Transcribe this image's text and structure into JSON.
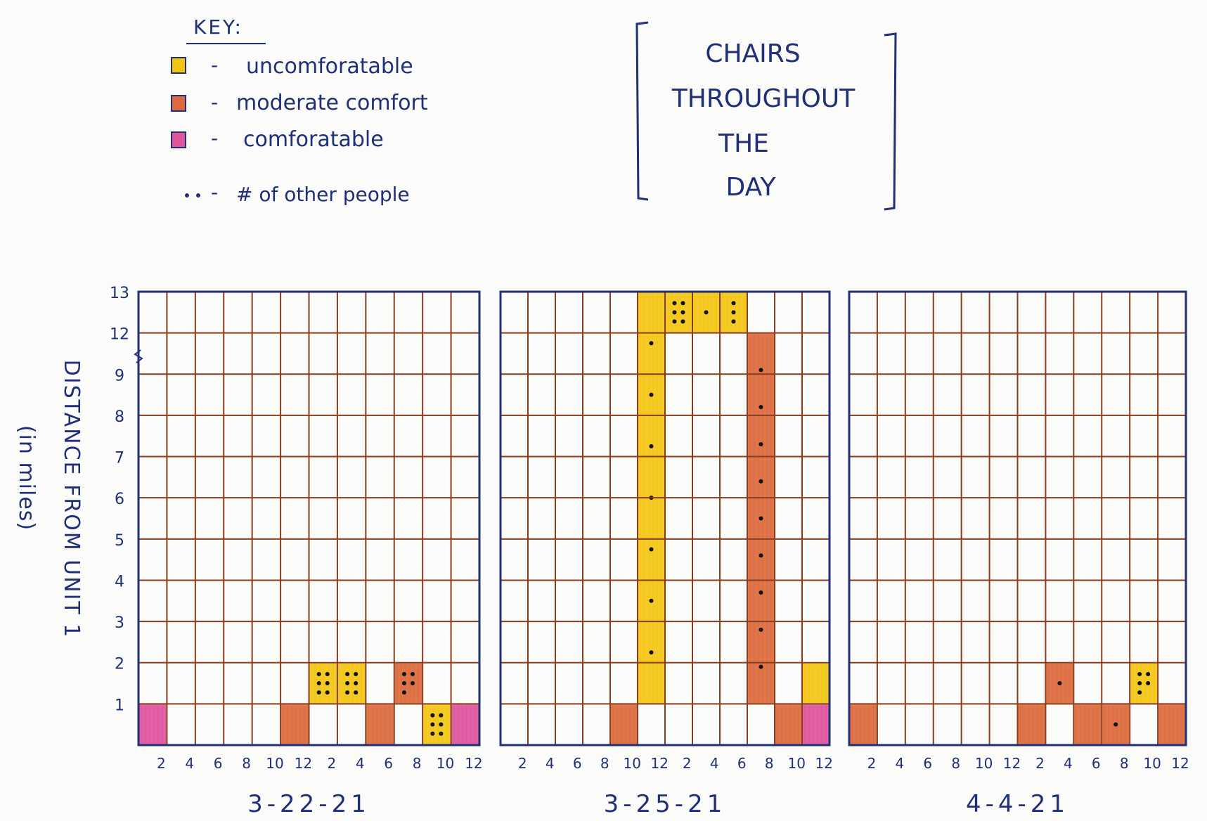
{
  "chart_data": {
    "type": "heatmap",
    "title_lines": [
      "CHAIRS",
      "THROUGHOUT",
      "THE",
      "DAY"
    ],
    "key": {
      "heading": "KEY:",
      "items": [
        {
          "label": "uncomforatable",
          "color": "#f2c514"
        },
        {
          "label": "moderate comfort",
          "color": "#dc6a3c"
        },
        {
          "label": "comforatable",
          "color": "#e0549c"
        }
      ],
      "dots_label": "# of other people"
    },
    "ylabel": "DISTANCE FROM UNIT 1",
    "ylabel_sub": "(in miles)",
    "yticks": [
      "1",
      "2",
      "3",
      "4",
      "5",
      "6",
      "7",
      "8",
      "9",
      "12",
      "13"
    ],
    "x_slots": 12,
    "y_rows": 11,
    "xticks": [
      "2",
      "4",
      "6",
      "8",
      "10",
      "12",
      "2",
      "4",
      "6",
      "8",
      "10",
      "12"
    ],
    "colors": {
      "uncomfortable": "#f2c514",
      "moderate": "#dc6a3c",
      "comfortable": "#e0549c",
      "grid": "#8a3d1c",
      "frame": "#1f2f78"
    },
    "panels": [
      {
        "date": "3-22-21",
        "bars": [
          {
            "slot": 0,
            "bottom": 0,
            "top": 1,
            "comfort": "comfortable",
            "people": 0
          },
          {
            "slot": 5,
            "bottom": 0,
            "top": 1,
            "comfort": "moderate",
            "people": 0
          },
          {
            "slot": 6,
            "bottom": 1,
            "top": 2,
            "comfort": "uncomfortable",
            "people": 6
          },
          {
            "slot": 7,
            "bottom": 1,
            "top": 2,
            "comfort": "uncomfortable",
            "people": 6
          },
          {
            "slot": 8,
            "bottom": 0,
            "top": 1,
            "comfort": "moderate",
            "people": 0
          },
          {
            "slot": 9,
            "bottom": 1,
            "top": 2,
            "comfort": "moderate",
            "people": 5
          },
          {
            "slot": 10,
            "bottom": 0,
            "top": 1,
            "comfort": "uncomfortable",
            "people": 6
          },
          {
            "slot": 11,
            "bottom": 0,
            "top": 1,
            "comfort": "comfortable",
            "people": 0
          }
        ]
      },
      {
        "date": "3-25-21",
        "bars": [
          {
            "slot": 4,
            "bottom": 0,
            "top": 1,
            "comfort": "moderate",
            "people": 0
          },
          {
            "slot": 5,
            "bottom": 1,
            "top": 11,
            "comfort": "uncomfortable",
            "people": 7
          },
          {
            "slot": 6,
            "bottom": 10,
            "top": 11,
            "comfort": "uncomfortable",
            "people": 6
          },
          {
            "slot": 7,
            "bottom": 10,
            "top": 11,
            "comfort": "uncomfortable",
            "people": 1
          },
          {
            "slot": 8,
            "bottom": 10,
            "top": 11,
            "comfort": "uncomfortable",
            "people": 3
          },
          {
            "slot": 9,
            "bottom": 1,
            "top": 10,
            "comfort": "moderate",
            "people": 9
          },
          {
            "slot": 10,
            "bottom": 0,
            "top": 1,
            "comfort": "moderate",
            "people": 0
          },
          {
            "slot": 11,
            "bottom": 1,
            "top": 2,
            "comfort": "uncomfortable",
            "people": 0
          },
          {
            "slot": 11,
            "bottom": 0,
            "top": 1,
            "comfort": "comfortable",
            "people": 0
          }
        ]
      },
      {
        "date": "4-4-21",
        "bars": [
          {
            "slot": 0,
            "bottom": 0,
            "top": 1,
            "comfort": "moderate",
            "people": 0
          },
          {
            "slot": 6,
            "bottom": 0,
            "top": 1,
            "comfort": "moderate",
            "people": 0
          },
          {
            "slot": 7,
            "bottom": 1,
            "top": 2,
            "comfort": "moderate",
            "people": 1
          },
          {
            "slot": 8,
            "bottom": 0,
            "top": 1,
            "comfort": "moderate",
            "people": 0
          },
          {
            "slot": 9,
            "bottom": 0,
            "top": 1,
            "comfort": "moderate",
            "people": 1
          },
          {
            "slot": 10,
            "bottom": 1,
            "top": 2,
            "comfort": "uncomfortable",
            "people": 5
          },
          {
            "slot": 11,
            "bottom": 0,
            "top": 1,
            "comfort": "moderate",
            "people": 0
          }
        ]
      }
    ]
  }
}
